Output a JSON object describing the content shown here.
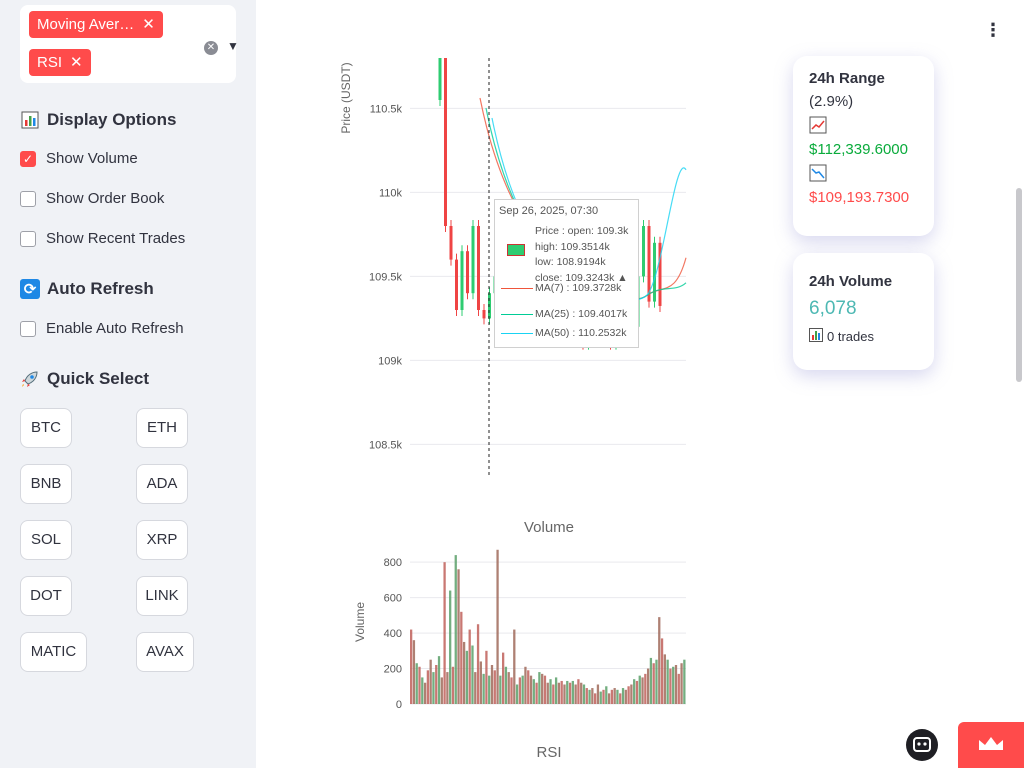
{
  "sidebar": {
    "indicators": {
      "tags": [
        "Moving Aver…",
        "RSI"
      ]
    },
    "display_options": {
      "title": "Display Options",
      "items": [
        {
          "label": "Show Volume",
          "checked": true
        },
        {
          "label": "Show Order Book",
          "checked": false
        },
        {
          "label": "Show Recent Trades",
          "checked": false
        }
      ]
    },
    "auto_refresh": {
      "title": "Auto Refresh",
      "items": [
        {
          "label": "Enable Auto Refresh",
          "checked": false
        }
      ]
    },
    "quick_select": {
      "title": "Quick Select",
      "symbols": [
        "BTC",
        "ETH",
        "BNB",
        "ADA",
        "SOL",
        "XRP",
        "DOT",
        "LINK",
        "MATIC",
        "AVAX"
      ]
    }
  },
  "cards": {
    "range": {
      "title": "24h Range",
      "pct": "(2.9%)",
      "high": "$112,339.6000",
      "low": "$109,193.7300",
      "high_color": "#09ab3b",
      "low_color": "#ff4b4b"
    },
    "volume": {
      "title": "24h Volume",
      "value": "6,078",
      "trades": "0 trades",
      "value_color": "#4db8b3"
    }
  },
  "icons": {
    "display": "bar-chart-icon",
    "refresh": "refresh-icon",
    "quick": "rocket-icon",
    "up": "chart-up-icon",
    "down": "chart-down-icon"
  },
  "chart_data": [
    {
      "type": "line",
      "ylabel": "Price (USDT)",
      "ylim": [
        108300,
        110800
      ],
      "yticks": [
        "110.5k",
        "110k",
        "109.5k",
        "109k",
        "108.5k"
      ],
      "ytick_values": [
        110500,
        110000,
        109500,
        109000,
        108500
      ],
      "ohlc": {
        "open": [
          110550,
          110900,
          109800,
          109600,
          109300,
          109650,
          109400,
          109800,
          109300,
          109250,
          109400,
          109500,
          109200,
          109700,
          109450,
          109500,
          109300,
          109150,
          109400,
          109200,
          109550,
          109300,
          109400,
          109800,
          109350,
          109150,
          109450,
          109100,
          109500,
          109300,
          109700,
          109400,
          109100,
          109650,
          109300,
          109600,
          109200,
          109500,
          109800,
          109350,
          109700
        ],
        "close": [
          110900,
          109800,
          109600,
          109300,
          109650,
          109400,
          109800,
          109300,
          109250,
          109400,
          109500,
          109200,
          109700,
          109450,
          109500,
          109300,
          109150,
          109400,
          109200,
          109550,
          109300,
          109400,
          109800,
          109350,
          109150,
          109450,
          109100,
          109500,
          109300,
          109700,
          109400,
          109100,
          109650,
          109300,
          109600,
          109200,
          109500,
          109800,
          109350,
          109700,
          109324
        ]
      },
      "ma_series": [
        {
          "name": "MA(7)",
          "color": "#ef553b",
          "values": [
            109373
          ]
        },
        {
          "name": "MA(25)",
          "color": "#00cc96",
          "values": [
            109402
          ]
        },
        {
          "name": "MA(50)",
          "color": "#19d3f3",
          "values": [
            110253
          ]
        }
      ],
      "tooltip": {
        "date": "Sep 26, 2025, 07:30",
        "lines": [
          "Price : open: 109.3k",
          "high: 109.3514k",
          "low: 108.9194k",
          "close: 109.3243k ▲"
        ],
        "ma": [
          {
            "text": "MA(7) : 109.3728k",
            "color": "#ef553b"
          },
          {
            "text": "MA(25) : 109.4017k",
            "color": "#00cc96"
          },
          {
            "text": "MA(50) : 110.2532k",
            "color": "#19d3f3"
          }
        ]
      }
    },
    {
      "type": "bar",
      "title": "Volume",
      "ylabel": "Volume",
      "ylim": [
        0,
        880
      ],
      "yticks": [
        "800",
        "600",
        "400",
        "200",
        "0"
      ],
      "ytick_values": [
        800,
        600,
        400,
        200,
        0
      ],
      "values": [
        420,
        360,
        230,
        210,
        150,
        120,
        190,
        250,
        180,
        220,
        270,
        150,
        800,
        180,
        640,
        210,
        840,
        760,
        520,
        350,
        300,
        420,
        330,
        180,
        450,
        240,
        170,
        300,
        160,
        220,
        190,
        870,
        160,
        290,
        210,
        180,
        150,
        420,
        110,
        150,
        160,
        210,
        190,
        160,
        140,
        120,
        180,
        170,
        160,
        120,
        140,
        110,
        150,
        120,
        130,
        110,
        130,
        120,
        130,
        110,
        140,
        120,
        110,
        90,
        80,
        90,
        60,
        110,
        70,
        80,
        100,
        60,
        80,
        90,
        80,
        60,
        90,
        80,
        100,
        110,
        140,
        130,
        160,
        150,
        170,
        200,
        260,
        230,
        250,
        490,
        370,
        280,
        250,
        200,
        210,
        220,
        170,
        230,
        250
      ],
      "footer": "RSI"
    }
  ]
}
